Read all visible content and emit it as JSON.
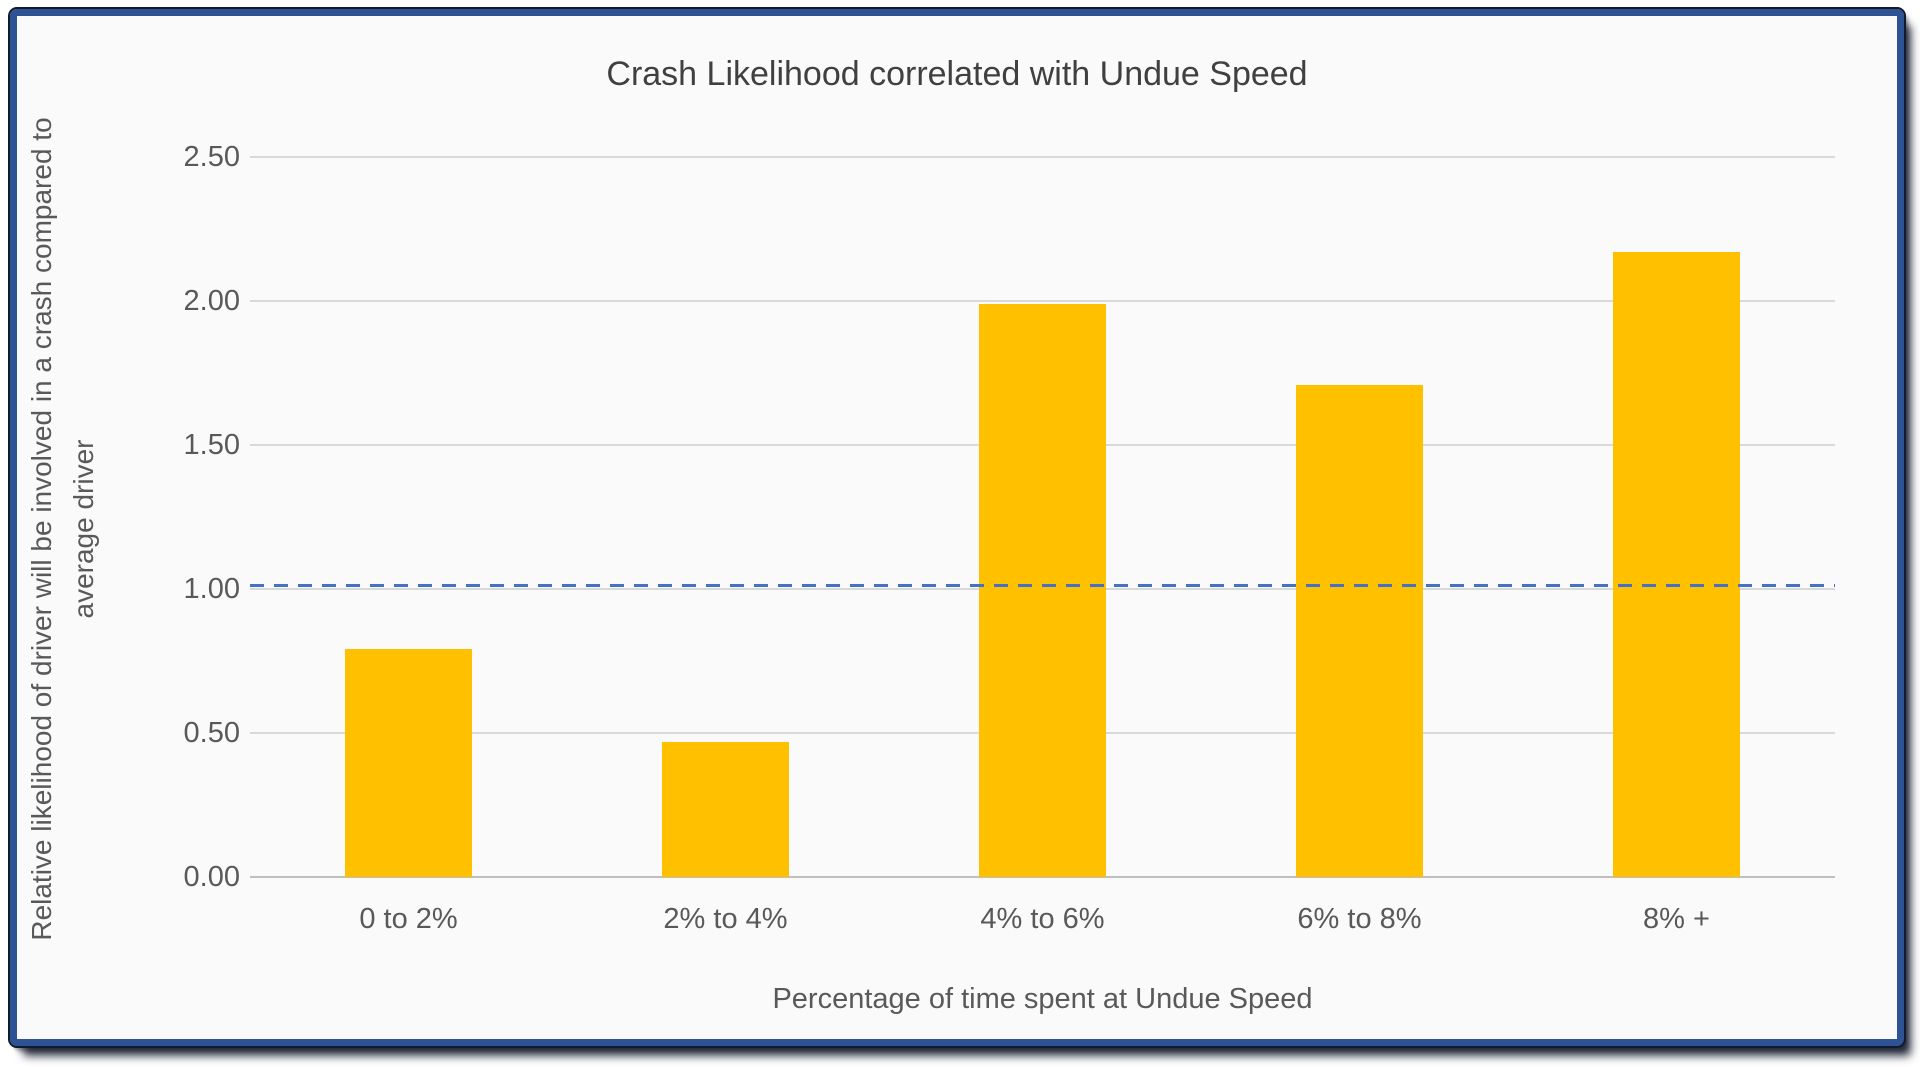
{
  "frame": {
    "border_color": "#2E5395",
    "edge_color": "#131A2C",
    "background": "#FAFAFA"
  },
  "chart_data": {
    "type": "bar",
    "title": "Crash Likelihood correlated with Undue Speed",
    "xlabel": "Percentage of time spent at Undue Speed",
    "ylabel_line1": "Relative likelihood of driver will be involved in a crash compared to",
    "ylabel_line2": "average driver",
    "categories": [
      "0 to 2%",
      "2% to 4%",
      "4% to 6%",
      "6% to 8%",
      "8% +"
    ],
    "values": [
      0.79,
      0.47,
      1.99,
      1.71,
      2.17
    ],
    "ylim": [
      0,
      2.5
    ],
    "ytick_labels": [
      "2.50",
      "2.00",
      "1.50",
      "1.00",
      "0.50",
      "0.00"
    ],
    "ytick_values": [
      2.5,
      2.0,
      1.5,
      1.0,
      0.5,
      0.0
    ],
    "reference_line": {
      "value": 1.0,
      "style": "dashed",
      "color": "#4472C4"
    },
    "grid": true,
    "legend": "none",
    "colors": {
      "bar": "#FFC000",
      "gridline": "#D9D9D9",
      "axis_line": "#BFBFBF",
      "tick_text": "#595959",
      "title_text": "#404040"
    }
  }
}
